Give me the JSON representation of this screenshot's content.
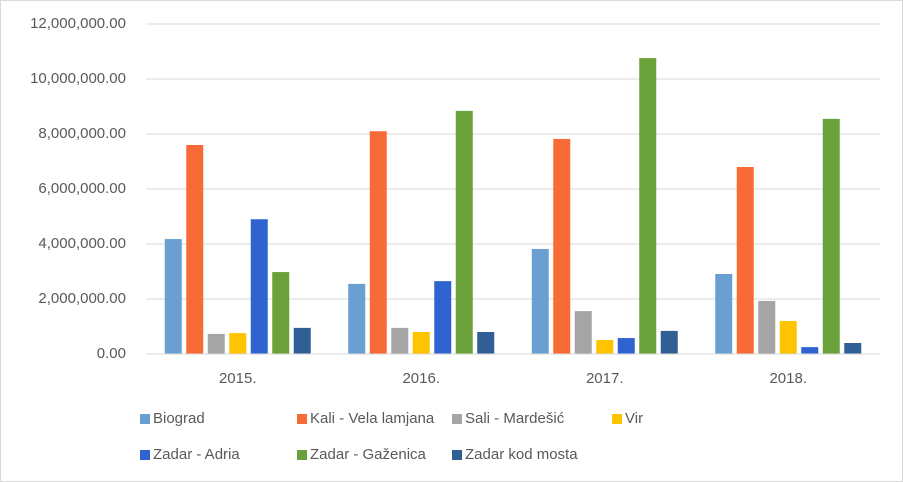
{
  "chart_data": {
    "type": "bar",
    "categories": [
      "2015.",
      "2016.",
      "2017.",
      "2018."
    ],
    "series": [
      {
        "name": "Biograd",
        "color": "#6a9fd2",
        "values": [
          4180000,
          2550000,
          3820000,
          2910000
        ]
      },
      {
        "name": "Kali - Vela lamjana",
        "color": "#f86a36",
        "values": [
          7600000,
          8100000,
          7820000,
          6800000
        ]
      },
      {
        "name": "Sali - Mardešić",
        "color": "#a5a5a5",
        "values": [
          730000,
          950000,
          1560000,
          1930000
        ]
      },
      {
        "name": "Vir",
        "color": "#ffc400",
        "values": [
          760000,
          800000,
          510000,
          1200000
        ]
      },
      {
        "name": "Zadar - Adria",
        "color": "#2f63cf",
        "values": [
          4900000,
          2650000,
          580000,
          250000
        ]
      },
      {
        "name": "Zadar - Gaženica",
        "color": "#6ba13a",
        "values": [
          2980000,
          8840000,
          10760000,
          8550000
        ]
      },
      {
        "name": "Zadar kod mosta",
        "color": "#2f5f95",
        "values": [
          950000,
          800000,
          840000,
          400000
        ]
      }
    ],
    "ylim": [
      0,
      12000000
    ],
    "yticks": [
      {
        "value": 0,
        "label": "0.00"
      },
      {
        "value": 2000000,
        "label": "2,000,000.00"
      },
      {
        "value": 4000000,
        "label": "4,000,000.00"
      },
      {
        "value": 6000000,
        "label": "6,000,000.00"
      },
      {
        "value": 8000000,
        "label": "8,000,000.00"
      },
      {
        "value": 10000000,
        "label": "10,000,000.00"
      },
      {
        "value": 12000000,
        "label": "12,000,000.00"
      }
    ],
    "grid": true,
    "legend": "bottom"
  }
}
